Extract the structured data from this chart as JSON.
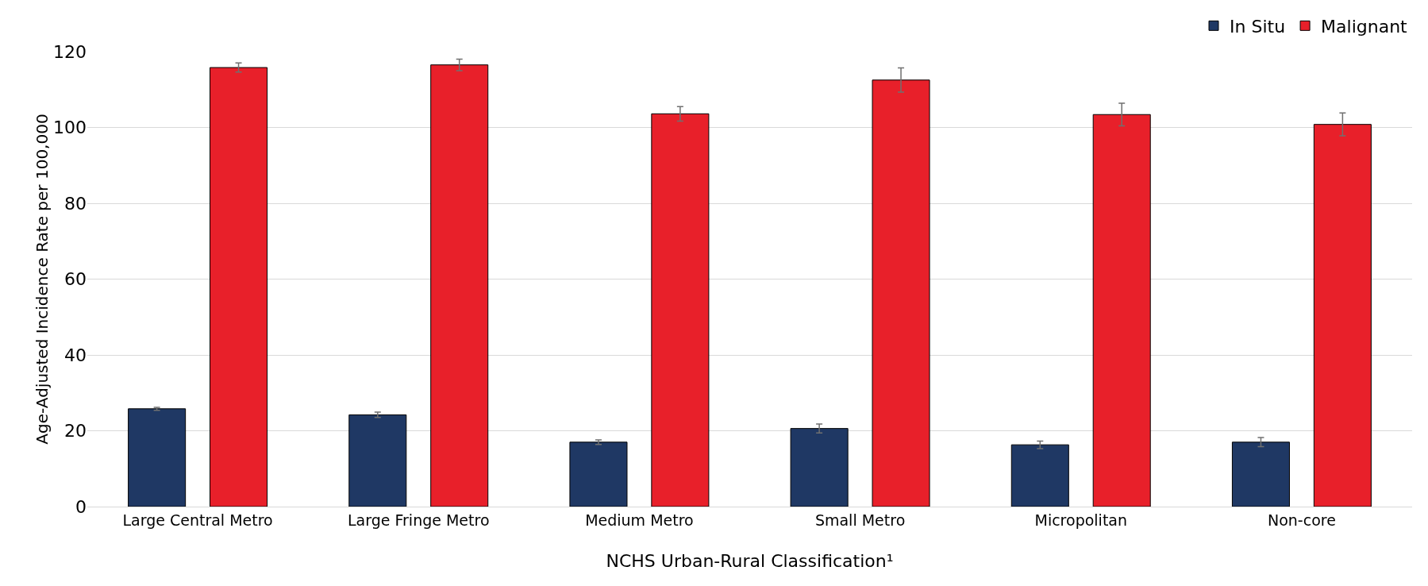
{
  "chart_data": {
    "type": "bar",
    "categories": [
      "Large Central Metro",
      "Large Fringe Metro",
      "Medium Metro",
      "Small Metro",
      "Micropolitan",
      "Non-core"
    ],
    "series": [
      {
        "name": "In Situ",
        "color": "#1f3864",
        "values": [
          25.8,
          24.2,
          17.0,
          20.6,
          16.3,
          17.0
        ],
        "errors": [
          0.4,
          0.7,
          0.6,
          1.2,
          1.0,
          1.2
        ]
      },
      {
        "name": "Malignant",
        "color": "#e8202a",
        "values": [
          115.8,
          116.5,
          103.6,
          112.5,
          103.4,
          100.8
        ],
        "errors": [
          1.2,
          1.5,
          1.9,
          3.2,
          3.0,
          3.0
        ]
      }
    ],
    "xlabel": "NCHS Urban-Rural Classification¹",
    "ylabel": "Age-Adjusted Incidence Rate per 100,000",
    "ylim": [
      0,
      120
    ],
    "yticks": [
      0,
      20,
      40,
      60,
      80,
      100,
      120
    ],
    "grid": "y",
    "legend": "top right"
  }
}
